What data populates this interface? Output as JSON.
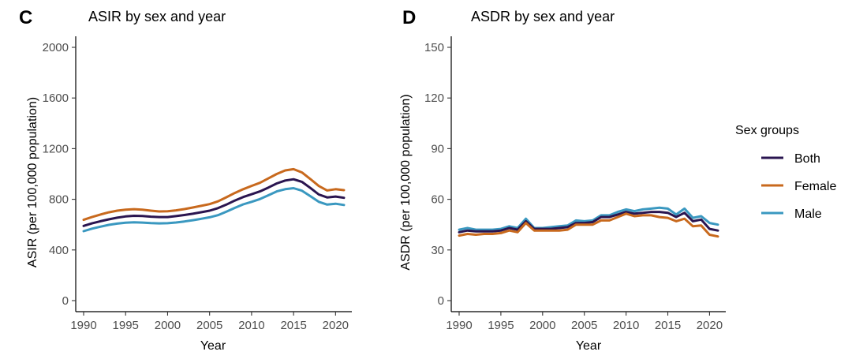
{
  "chart_data": [
    {
      "type": "line",
      "panel_label": "C",
      "title": "ASIR by sex and year",
      "xlabel": "Year",
      "ylabel": "ASIR (per 100,000 population)",
      "xlim": [
        1990,
        2021
      ],
      "ylim": [
        0,
        2000
      ],
      "xticks": [
        1990,
        1995,
        2000,
        2005,
        2010,
        2015,
        2020
      ],
      "yticks": [
        0,
        400,
        800,
        1200,
        1600,
        2000
      ],
      "x": [
        1990,
        1991,
        1992,
        1993,
        1994,
        1995,
        1996,
        1997,
        1998,
        1999,
        2000,
        2001,
        2002,
        2003,
        2004,
        2005,
        2006,
        2007,
        2008,
        2009,
        2010,
        2011,
        2012,
        2013,
        2014,
        2015,
        2016,
        2017,
        2018,
        2019,
        2020,
        2021
      ],
      "series": [
        {
          "name": "Both",
          "color": "#2a1550",
          "values": [
            590,
            610,
            627,
            642,
            655,
            665,
            670,
            668,
            663,
            660,
            660,
            667,
            676,
            686,
            698,
            710,
            730,
            758,
            790,
            818,
            840,
            862,
            893,
            925,
            948,
            958,
            938,
            890,
            838,
            815,
            822,
            812
          ]
        },
        {
          "name": "Female",
          "color": "#c8691d",
          "values": [
            638,
            660,
            680,
            697,
            710,
            718,
            722,
            718,
            710,
            704,
            706,
            713,
            723,
            735,
            748,
            762,
            784,
            816,
            850,
            880,
            906,
            930,
            965,
            1000,
            1028,
            1038,
            1012,
            960,
            905,
            870,
            880,
            872
          ]
        },
        {
          "name": "Male",
          "color": "#3a98c0",
          "values": [
            548,
            568,
            584,
            598,
            608,
            615,
            618,
            616,
            612,
            610,
            611,
            617,
            625,
            635,
            646,
            658,
            675,
            702,
            732,
            760,
            780,
            802,
            832,
            862,
            880,
            888,
            868,
            825,
            780,
            758,
            765,
            755
          ]
        }
      ]
    },
    {
      "type": "line",
      "panel_label": "D",
      "title": "ASDR by sex and year",
      "xlabel": "Year",
      "ylabel": "ASDR (per 100,000 population)",
      "xlim": [
        1990,
        2021
      ],
      "ylim": [
        0,
        150
      ],
      "xticks": [
        1990,
        1995,
        2000,
        2005,
        2010,
        2015,
        2020
      ],
      "yticks": [
        0,
        30,
        60,
        90,
        120,
        150
      ],
      "x": [
        1990,
        1991,
        1992,
        1993,
        1994,
        1995,
        1996,
        1997,
        1998,
        1999,
        2000,
        2001,
        2002,
        2003,
        2004,
        2005,
        2006,
        2007,
        2008,
        2009,
        2010,
        2011,
        2012,
        2013,
        2014,
        2015,
        2016,
        2017,
        2018,
        2019,
        2020,
        2021
      ],
      "series": [
        {
          "name": "Male",
          "color": "#3a98c0",
          "values": [
            42,
            43,
            42,
            42,
            42,
            42.5,
            44,
            43,
            48.5,
            43,
            43,
            43.5,
            44,
            44.5,
            47.5,
            47,
            47.5,
            50.5,
            50.5,
            52.5,
            54,
            53,
            54,
            54.5,
            55,
            54.5,
            51,
            54.5,
            49,
            50,
            46,
            45
          ]
        },
        {
          "name": "Both",
          "color": "#2a1550",
          "values": [
            40.5,
            41.5,
            41,
            41,
            41,
            41.5,
            43,
            42,
            47,
            42.5,
            42.5,
            42.5,
            43,
            43.5,
            46,
            46,
            46.5,
            49.5,
            49.5,
            51,
            52.5,
            51.5,
            52,
            52.5,
            52.5,
            52,
            49.5,
            52,
            47,
            48,
            42.5,
            41.5
          ]
        },
        {
          "name": "Female",
          "color": "#c8691d",
          "values": [
            38.5,
            39.5,
            39,
            39.5,
            39.5,
            40,
            41.5,
            40.5,
            46,
            41.5,
            41.5,
            41.5,
            41.5,
            42,
            45,
            45,
            45,
            47.5,
            47.5,
            49.5,
            51.5,
            50,
            50.5,
            50.5,
            49.5,
            49,
            47,
            48.5,
            44,
            44.5,
            39,
            38
          ]
        }
      ]
    }
  ],
  "legend": {
    "title": "Sex groups",
    "items": [
      {
        "label": "Both",
        "color": "#2a1550"
      },
      {
        "label": "Female",
        "color": "#c8691d"
      },
      {
        "label": "Male",
        "color": "#3a98c0"
      }
    ]
  }
}
